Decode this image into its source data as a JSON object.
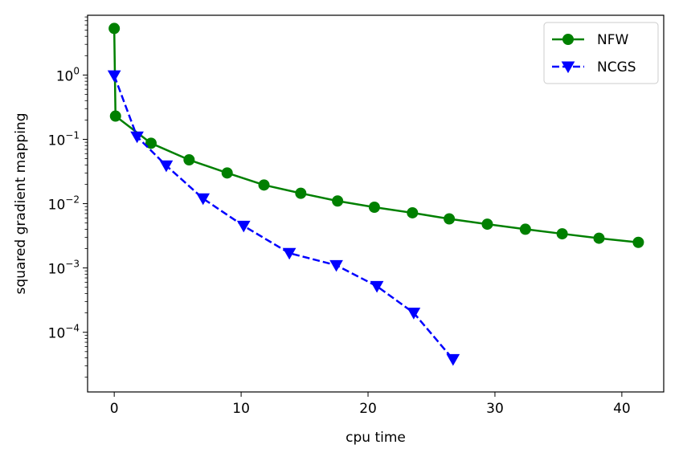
{
  "chart_data": {
    "type": "line",
    "title": "",
    "xlabel": "cpu time",
    "ylabel": "squared gradient mapping",
    "xscale": "linear",
    "yscale": "log",
    "xlim": [
      -2.1,
      43.3
    ],
    "ylim": [
      1.18e-05,
      8.5
    ],
    "x_ticks": [
      {
        "value": 0,
        "label": "0"
      },
      {
        "value": 10,
        "label": "10"
      },
      {
        "value": 20,
        "label": "20"
      },
      {
        "value": 30,
        "label": "30"
      },
      {
        "value": 40,
        "label": "40"
      }
    ],
    "y_ticks": [
      {
        "value": 1,
        "base": "10",
        "exp": "0"
      },
      {
        "value": 0.1,
        "base": "10",
        "exp": "−1"
      },
      {
        "value": 0.01,
        "base": "10",
        "exp": "−2"
      },
      {
        "value": 0.001,
        "base": "10",
        "exp": "−3"
      },
      {
        "value": 0.0001,
        "base": "10",
        "exp": "−4"
      }
    ],
    "grid": false,
    "legend_position": "top-right",
    "series": [
      {
        "name": "NFW",
        "color": "#008000",
        "linestyle": "solid",
        "marker": "circle",
        "x": [
          0.0,
          0.1,
          2.9,
          5.9,
          8.9,
          11.8,
          14.7,
          17.6,
          20.5,
          23.5,
          26.4,
          29.4,
          32.4,
          35.3,
          38.2,
          41.3
        ],
        "y": [
          5.3,
          0.23,
          0.087,
          0.048,
          0.03,
          0.0195,
          0.0145,
          0.011,
          0.0088,
          0.0072,
          0.0058,
          0.0048,
          0.004,
          0.0034,
          0.0029,
          0.0025
        ]
      },
      {
        "name": "NCGS",
        "color": "#0000ff",
        "linestyle": "dashed",
        "marker": "triangle-down",
        "x": [
          0.0,
          1.8,
          4.1,
          7.0,
          10.2,
          13.8,
          17.5,
          20.7,
          23.6,
          26.7
        ],
        "y": [
          0.98,
          0.11,
          0.039,
          0.012,
          0.0045,
          0.0017,
          0.0011,
          0.00052,
          0.0002,
          3.8e-05
        ]
      }
    ]
  }
}
